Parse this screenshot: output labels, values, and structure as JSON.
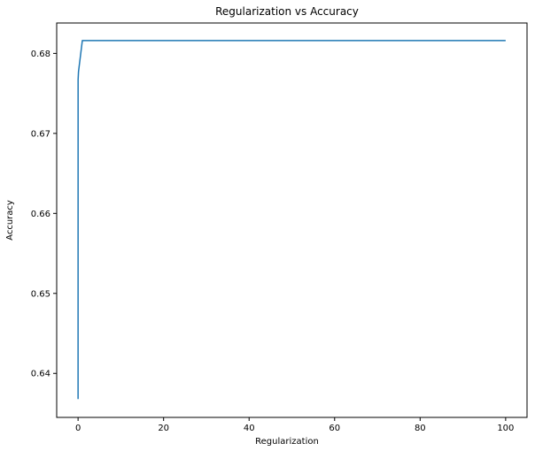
{
  "chart_data": {
    "type": "line",
    "title": "Regularization vs Accuracy",
    "xlabel": "Regularization",
    "ylabel": "Accuracy",
    "xlim": [
      -5,
      105
    ],
    "ylim": [
      0.6345,
      0.6838
    ],
    "grid": false,
    "legend": "none",
    "xticks": [
      0,
      20,
      40,
      60,
      80,
      100
    ],
    "xtick_labels": [
      "0",
      "20",
      "40",
      "60",
      "80",
      "100"
    ],
    "yticks": [
      0.64,
      0.65,
      0.66,
      0.67,
      0.68
    ],
    "ytick_labels": [
      "0.64",
      "0.65",
      "0.66",
      "0.67",
      "0.68"
    ],
    "series": [
      {
        "color": "#1f77b4",
        "x": [
          0.001,
          0.01,
          0.1,
          1,
          10,
          100
        ],
        "y": [
          0.6368,
          0.6767,
          0.6777,
          0.6816,
          0.6816,
          0.6816
        ]
      }
    ]
  }
}
